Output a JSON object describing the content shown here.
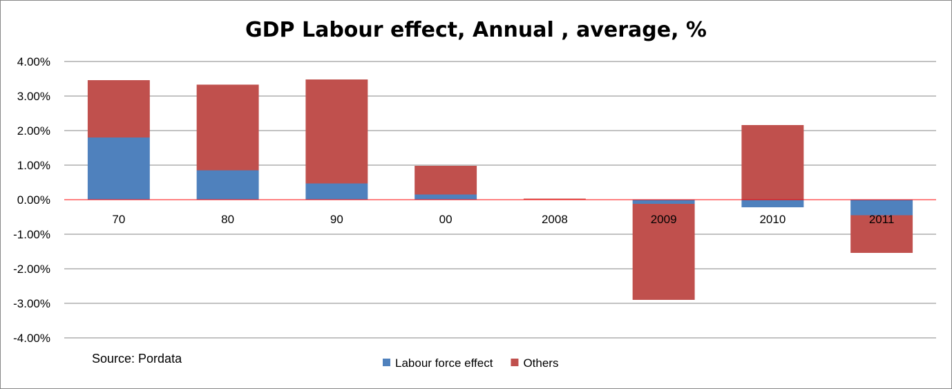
{
  "chart_data": {
    "type": "bar",
    "stacked": true,
    "title": "GDP Labour effect, Annual , average, %",
    "categories": [
      "70",
      "80",
      "90",
      "00",
      "2008",
      "2009",
      "2010",
      "2011"
    ],
    "series": [
      {
        "name": "Labour force effect",
        "color": "#4F81BD",
        "values": [
          1.8,
          0.85,
          0.47,
          0.15,
          0.0,
          -0.12,
          -0.22,
          -0.45
        ]
      },
      {
        "name": "Others",
        "color": "#C0504D",
        "values": [
          1.66,
          2.48,
          3.01,
          0.83,
          0.03,
          -2.78,
          2.16,
          -1.09
        ]
      }
    ],
    "yticks": [
      "4.00%",
      "3.00%",
      "2.00%",
      "1.00%",
      "0.00%",
      "-1.00%",
      "-2.00%",
      "-3.00%",
      "-4.00%"
    ],
    "ylim": [
      -4,
      4
    ],
    "unit": "%",
    "grid": true,
    "zero_line_color": "#FF0000",
    "gridline_color": "#868686",
    "legend_position": "bottom-center",
    "annotation": "Source: Pordata"
  }
}
